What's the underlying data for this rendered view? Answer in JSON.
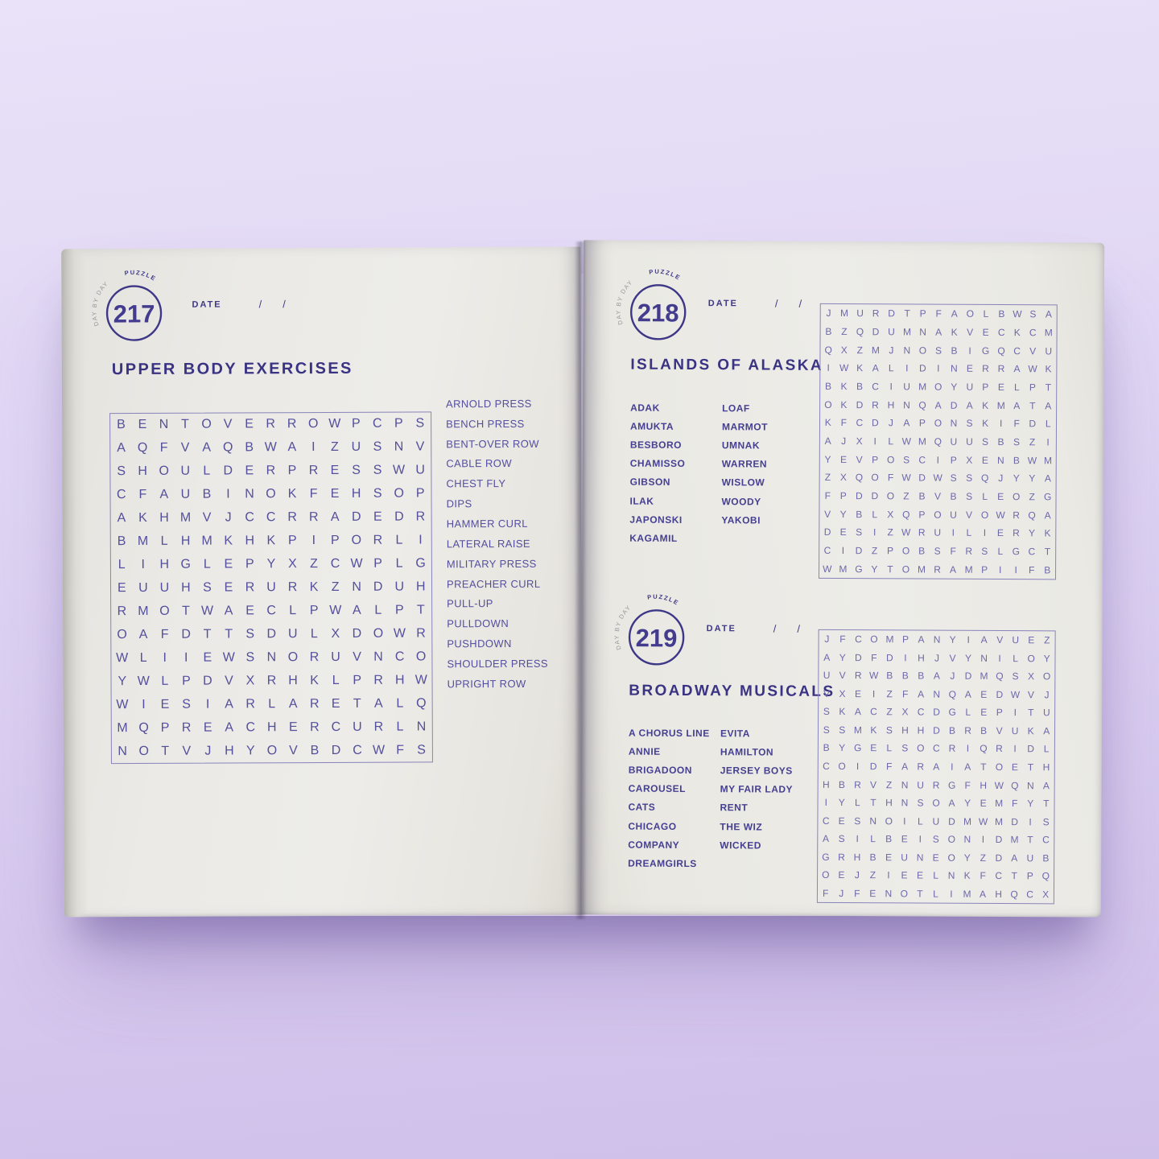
{
  "colors": {
    "ink": "#3e3787",
    "grid_letter": "#544f9c",
    "page": "#eae9e4",
    "background": "#dccfef"
  },
  "badge": {
    "arc_prefix": "DAY BY DAY",
    "arc_suffix": "PUZZLE"
  },
  "date_label": "DATE",
  "slash": "/",
  "puzzles": [
    {
      "number": "217",
      "title": "UPPER BODY EXERCISES",
      "grid": [
        "BENTOVERROWPCPS",
        "AQFVAQBWAIZUSNV",
        "SHOULDERPRESSWU",
        "CFAUBINOKFEHSOP",
        "AKHMVJCCRRADEDR",
        "BMLHMKHKPIPORLI",
        "LIHGLEPYXZCWPLG",
        "EUUHSERURKZNDUH",
        "RMOTWAECLPWALPT",
        "OAFDTTSDULXDOWR",
        "WLIIEWSNORUVNCO",
        "YWLPDVXRHKLPRHW",
        "WIESIARLARETALQ",
        "MQPREACHERCURLN",
        "NOTVJHYOVBDCWFS"
      ],
      "words": [
        "ARNOLD PRESS",
        "BENCH PRESS",
        "BENT-OVER ROW",
        "CABLE ROW",
        "CHEST FLY",
        "DIPS",
        "HAMMER CURL",
        "LATERAL RAISE",
        "MILITARY PRESS",
        "PREACHER CURL",
        "PULL-UP",
        "PULLDOWN",
        "PUSHDOWN",
        "SHOULDER PRESS",
        "UPRIGHT ROW"
      ]
    },
    {
      "number": "218",
      "title": "ISLANDS OF ALASKA",
      "grid": [
        "JMURDTPFAOLBWSA",
        "BZQDUMNAKVECKCM",
        "QXZMJNOSBIGQCVU",
        "IWKALIDINERRAWK",
        "BKBCIUMOYUPELPT",
        "OKDRHNQADAKMATA",
        "KFCDJAPONSKIFDL",
        "AJXILWMQUUSBSZI",
        "YEVPOSCIPXENBWM",
        "ZXQOFWDWSSQJYYA",
        "FPDDOZBVBSLEOZG",
        "VYBLXQPOUVOWRQA",
        "DESIZWRUILIERYK",
        "CIDZPOBSFRSLGCT",
        "WMGYTOMRAMPIIFB"
      ],
      "words_col1": [
        "ADAK",
        "AMUKTA",
        "BESBORO",
        "CHAMISSO",
        "GIBSON",
        "ILAK",
        "JAPONSKI",
        "KAGAMIL"
      ],
      "words_col2": [
        "LOAF",
        "MARMOT",
        "UMNAK",
        "WARREN",
        "WISLOW",
        "WOODY",
        "YAKOBI"
      ]
    },
    {
      "number": "219",
      "title": "BROADWAY MUSICALS",
      "grid": [
        "JFCOMPANYIAVUEZ",
        "AYDFDIHJVYNILOY",
        "UVRWBBBAJDMQSXO",
        "VXEIZFANQAEDWVJ",
        "SKACZXCDGLEPITU",
        "SSMKSHHDBRBVUKA",
        "BYGELSOCRIQRIDL",
        "COIDFARAIATOETH",
        "HBRVZNURGFHWQNA",
        "IYLTHNSOAYEMFYT",
        "CESNOILUDMWMDIS",
        "ASILBEISONIDMTC",
        "GRHBEUNEOYZDAUB",
        "OEJZIEELNKFCTPQ",
        "FJFENOTLIMAHQCX"
      ],
      "words_col1": [
        "A CHORUS LINE",
        "ANNIE",
        "BRIGADOON",
        "CAROUSEL",
        "CATS",
        "CHICAGO",
        "COMPANY",
        "DREAMGIRLS"
      ],
      "words_col2": [
        "EVITA",
        "HAMILTON",
        "JERSEY BOYS",
        "MY FAIR LADY",
        "RENT",
        "THE WIZ",
        "WICKED"
      ]
    }
  ]
}
